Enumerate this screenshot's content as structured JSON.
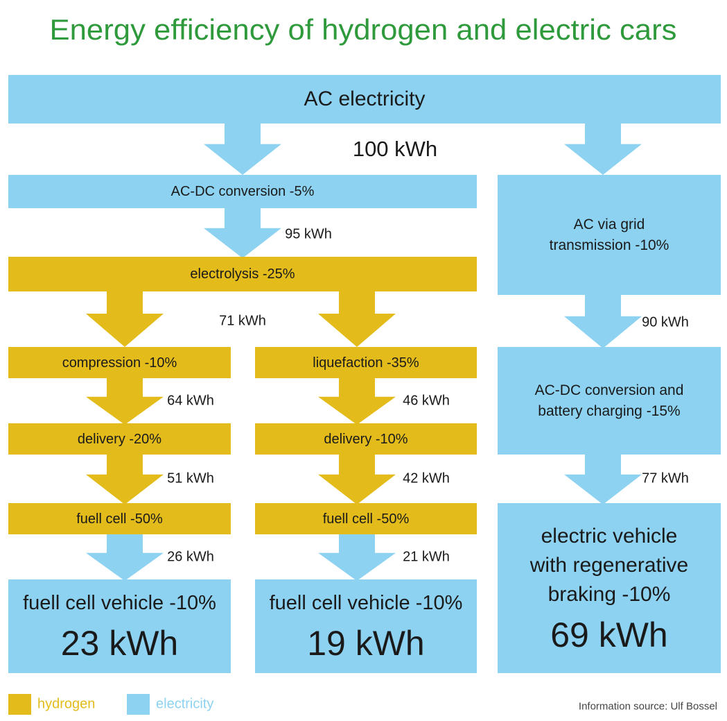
{
  "title": "Energy efficiency of hydrogen and electric cars",
  "nodes": [
    {
      "label": "AC electricity"
    },
    {
      "label": "AC-DC conversion -5%"
    },
    {
      "label": "electrolysis -25%"
    },
    {
      "label": "compression -10%"
    },
    {
      "label": "liquefaction -35%"
    },
    {
      "label": "delivery -20%"
    },
    {
      "label": "delivery -10%"
    },
    {
      "label": "fuell cell -50%"
    },
    {
      "label": "fuell cell -50%"
    },
    {
      "label": "fuell cell vehicle -10%",
      "result": "23 kWh"
    },
    {
      "label": "fuell cell vehicle -10%",
      "result": "19 kWh"
    },
    {
      "label": "AC via grid transmission -10%"
    },
    {
      "label": "AC-DC conversion and battery charging -15%"
    },
    {
      "label": "electric vehicle with regenerative braking -10%",
      "result": "69 kWh"
    }
  ],
  "flows": [
    "100 kWh",
    "95 kWh",
    "71 kWh",
    "64 kWh",
    "46 kWh",
    "51 kWh",
    "42 kWh",
    "26 kWh",
    "21 kWh",
    "90 kWh",
    "77 kWh"
  ],
  "legend": [
    {
      "label": "hydrogen",
      "color": "#e3bc1c"
    },
    {
      "label": "electricity",
      "color": "#8dd2f1"
    }
  ],
  "source": "Information source: Ulf Bossel"
}
